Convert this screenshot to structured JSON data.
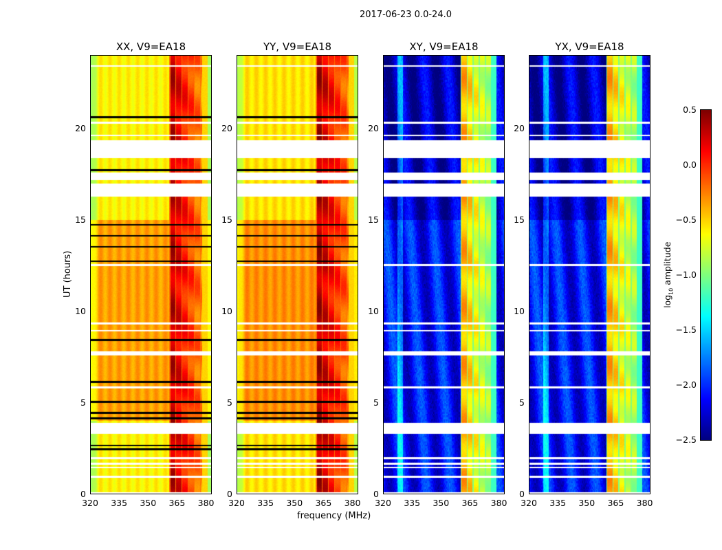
{
  "suptitle": "2017-06-23 0.0-24.0",
  "xlabel": "frequency (MHz)",
  "ylabel": "UT (hours)",
  "colorbar": {
    "label": "log10 amplitude",
    "label_main": "log",
    "label_sub": "10",
    "label_rest": " amplitude",
    "range": [
      -2.5,
      0.5
    ],
    "ticks": [
      "0.5",
      "0.0",
      "−0.5",
      "−1.0",
      "−1.5",
      "−2.0",
      "−2.5"
    ],
    "colormap": "jet"
  },
  "chart_data": {
    "type": "heatmap",
    "title": "2017-06-23 0.0-24.0",
    "xlabel": "frequency (MHz)",
    "ylabel": "UT (hours)",
    "xlim": [
      320,
      383
    ],
    "ylim": [
      0,
      24
    ],
    "xticks": [
      "320",
      "335",
      "350",
      "365",
      "380"
    ],
    "yticks": [
      "0",
      "5",
      "10",
      "15",
      "20"
    ],
    "flagged_time_ranges_hours": [
      [
        3.3,
        3.9
      ],
      [
        16.3,
        17.0
      ],
      [
        17.2,
        17.6
      ],
      [
        18.4,
        19.4
      ],
      [
        19.6,
        19.7
      ]
    ],
    "panels": [
      {
        "title": "XX, V9=EA18",
        "type": "parallel",
        "base_log_amp": -0.35,
        "rfi_band_mhz": [
          361,
          381
        ],
        "peak_log_amp": 0.3
      },
      {
        "title": "YY, V9=EA18",
        "type": "parallel",
        "base_log_amp": -0.3,
        "rfi_band_mhz": [
          361,
          381
        ],
        "peak_log_amp": 0.35
      },
      {
        "title": "XY, V9=EA18",
        "type": "cross",
        "base_log_amp": -2.2,
        "rfi_band_mhz": [
          360,
          379
        ],
        "peak_log_amp": -0.4
      },
      {
        "title": "YX, V9=EA18",
        "type": "cross",
        "base_log_amp": -2.2,
        "rfi_band_mhz": [
          360,
          379
        ],
        "peak_log_amp": -0.4
      }
    ]
  }
}
